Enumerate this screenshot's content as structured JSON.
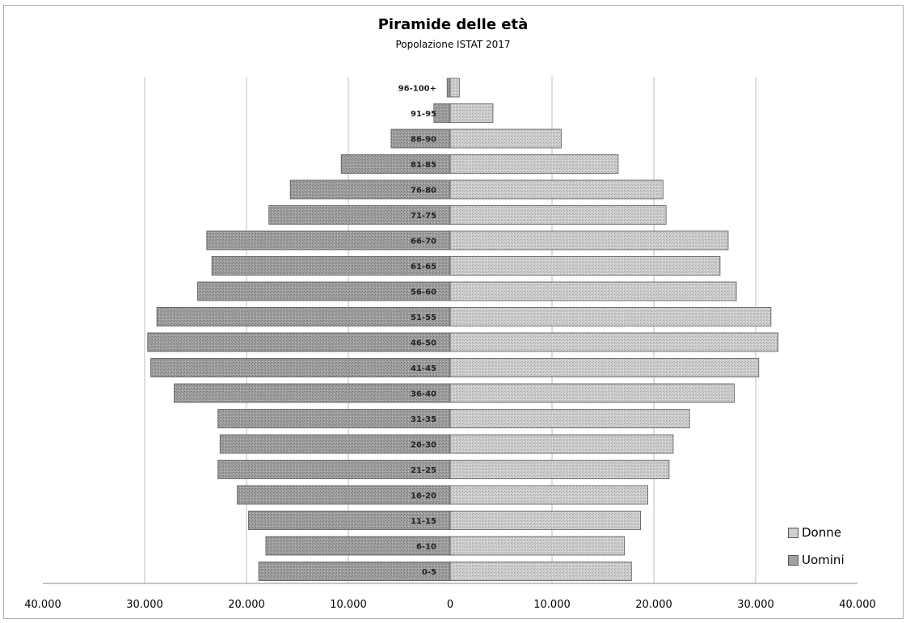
{
  "chart_data": {
    "type": "bar",
    "orientation": "horizontal",
    "title": "Piramide delle età",
    "subtitle": "Popolazione ISTAT 2017",
    "categories": [
      "0-5",
      "6-10",
      "11-15",
      "16-20",
      "21-25",
      "26-30",
      "31-35",
      "36-40",
      "41-45",
      "46-50",
      "51-55",
      "56-60",
      "61-65",
      "66-70",
      "71-75",
      "76-80",
      "81-85",
      "86-90",
      "91-95",
      "96-100+"
    ],
    "series": [
      {
        "name": "Donne",
        "color": "#c8c8c8",
        "values": [
          17800,
          17100,
          18700,
          19400,
          21500,
          21900,
          23500,
          27900,
          30300,
          32200,
          31500,
          28100,
          26500,
          27300,
          21200,
          20900,
          16500,
          10900,
          4200,
          900
        ]
      },
      {
        "name": "Uomini",
        "color": "#9a9a9a",
        "values": [
          18800,
          18100,
          19800,
          20900,
          22800,
          22600,
          22800,
          27100,
          29400,
          29700,
          28800,
          24800,
          23400,
          23900,
          17800,
          15700,
          10700,
          5800,
          1600,
          300
        ]
      }
    ],
    "x_ticks": [
      "40.000",
      "30.000",
      "20.000",
      "10.000",
      "0",
      "10.000",
      "20.000",
      "30.000",
      "40.000"
    ],
    "xlim": [
      -40000,
      40000
    ],
    "grid": true,
    "legend_position": "bottom-right"
  }
}
